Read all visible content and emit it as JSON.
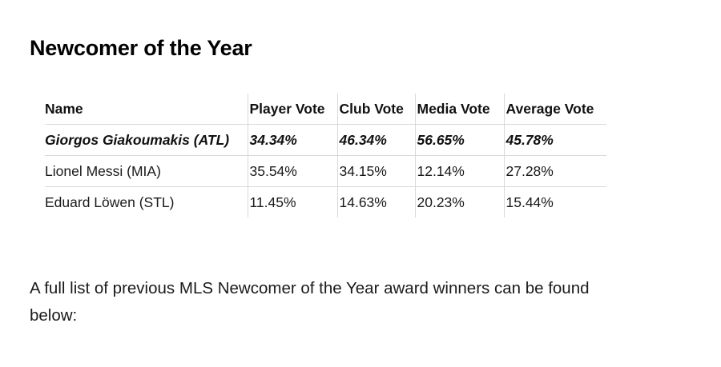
{
  "heading": "Newcomer of the Year",
  "table": {
    "headers": [
      "Name",
      "Player Vote",
      "Club Vote",
      "Media Vote",
      "Average Vote"
    ],
    "rows": [
      [
        "Giorgos Giakoumakis (ATL)",
        "34.34%",
        "46.34%",
        "56.65%",
        "45.78%"
      ],
      [
        "Lionel Messi (MIA)",
        "35.54%",
        "34.15%",
        "12.14%",
        "27.28%"
      ],
      [
        "Eduard Löwen (STL)",
        "11.45%",
        "14.63%",
        "20.23%",
        "15.44%"
      ]
    ]
  },
  "paragraph": "A full list of previous MLS Newcomer of the Year award winners can be found below:"
}
